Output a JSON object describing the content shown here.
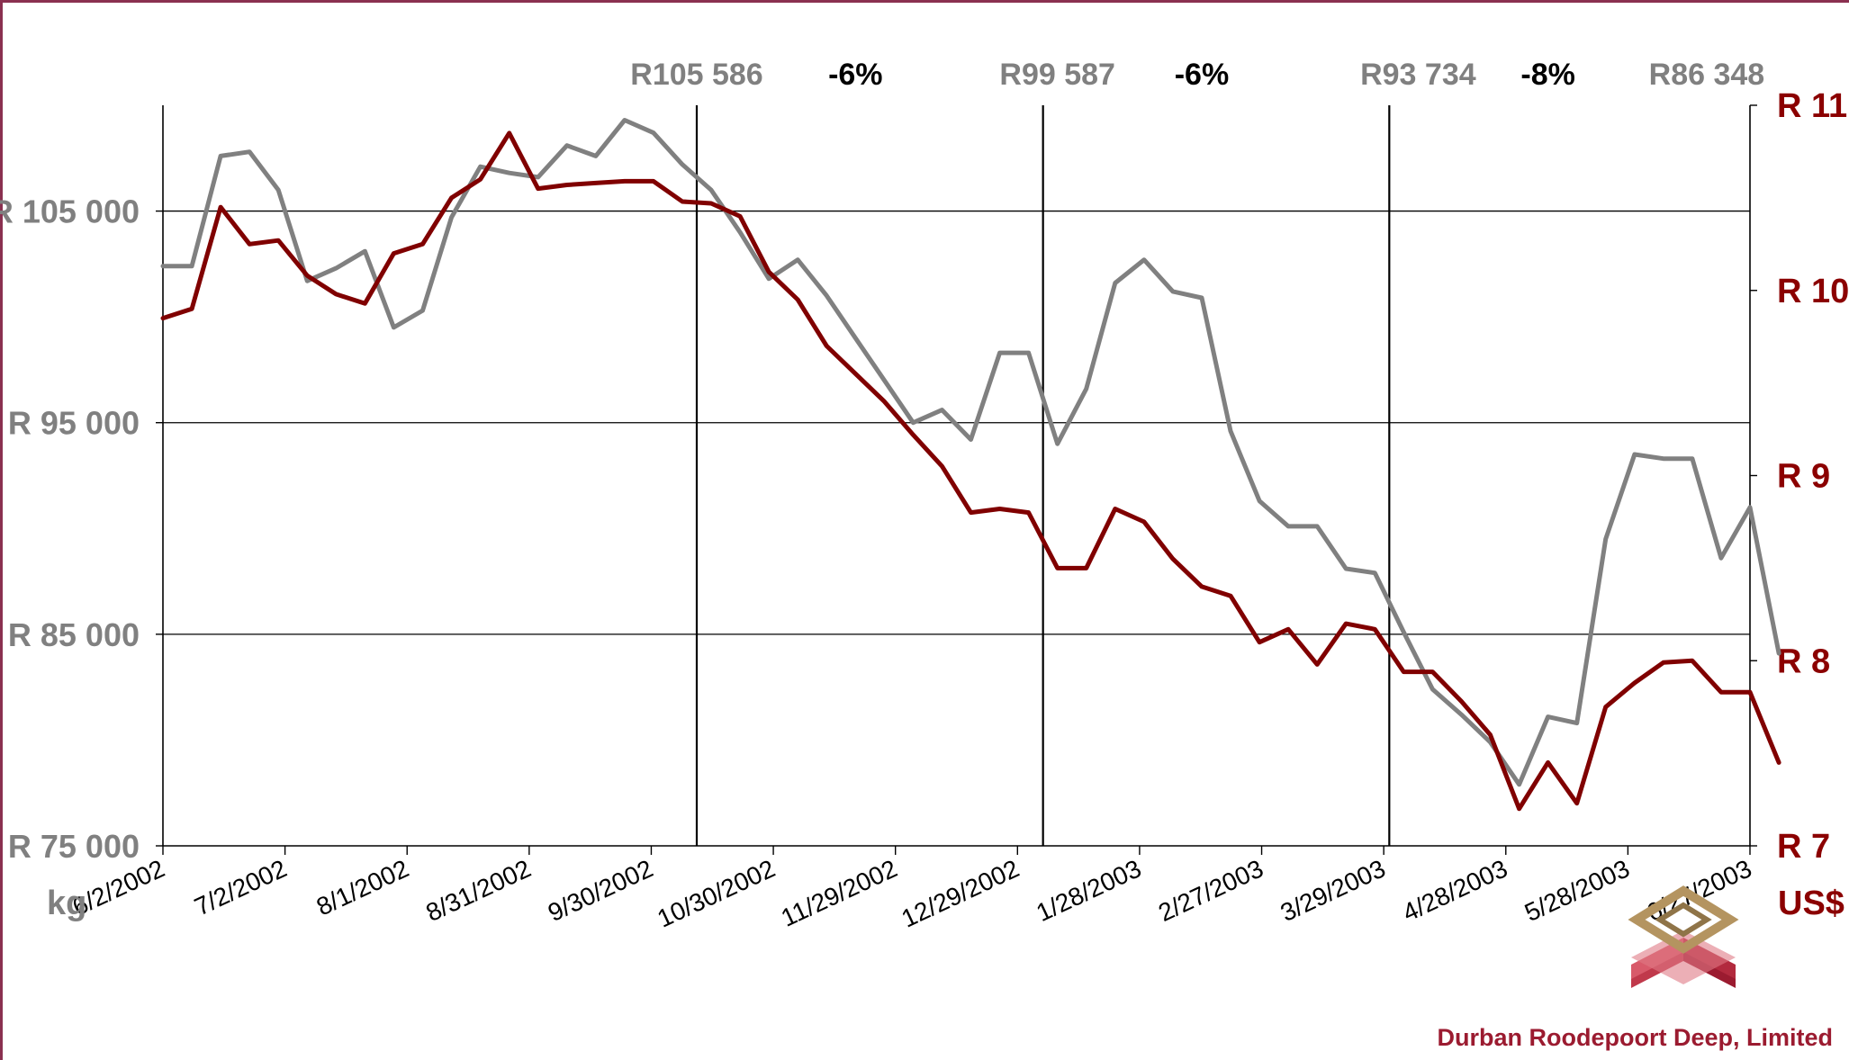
{
  "chart_data": {
    "type": "line",
    "left_axis": {
      "unit": "kg",
      "ticks": [
        "R 105 000",
        "R 95 000",
        "R 85 000",
        "R 75 000"
      ],
      "tick_values": [
        105000,
        95000,
        85000,
        75000
      ],
      "range": [
        75000,
        110000
      ]
    },
    "right_axis": {
      "unit": "US$",
      "ticks": [
        "R 11",
        "R 10",
        "R 9",
        "R 8",
        "R 7"
      ],
      "tick_values": [
        11,
        10,
        9,
        8,
        7
      ],
      "range": [
        7,
        11
      ]
    },
    "x_tick_labels": [
      "6/2/2002",
      "7/2/2002",
      "8/1/2002",
      "8/31/2002",
      "9/30/2002",
      "10/30/2002",
      "11/29/2002",
      "12/29/2002",
      "1/28/2003",
      "2/27/2003",
      "3/29/2003",
      "4/28/2003",
      "5/28/2003",
      "6/27/2003"
    ],
    "x_range_index": [
      0,
      55
    ],
    "annotations": [
      {
        "text": "R105 586",
        "style": "gray",
        "x_index": 18.5
      },
      {
        "text": "-6%",
        "style": "black",
        "x_index": 24
      },
      {
        "text": "R99 587",
        "style": "gray",
        "x_index": 31
      },
      {
        "text": "-6%",
        "style": "black",
        "x_index": 36
      },
      {
        "text": "R93 734",
        "style": "gray",
        "x_index": 43.5
      },
      {
        "text": "-8%",
        "style": "black",
        "x_index": 48
      },
      {
        "text": "R86 348",
        "style": "gray",
        "x_index": 53.5
      }
    ],
    "period_dividers_index": [
      18.5,
      30.5,
      42.5
    ],
    "grid": true,
    "series": [
      {
        "color": "#808080",
        "axis": "left",
        "values": [
          102400,
          102400,
          107600,
          107800,
          106000,
          101700,
          102300,
          103100,
          99500,
          100300,
          104700,
          107100,
          106800,
          106600,
          108100,
          107600,
          109300,
          108700,
          107200,
          106000,
          104000,
          101800,
          102700,
          101000,
          99000,
          97000,
          95000,
          95600,
          94200,
          98300,
          98300,
          94000,
          96600,
          101600,
          102700,
          101200,
          100900,
          94600,
          91300,
          90100,
          90100,
          88100,
          87900,
          85100,
          82400,
          81200,
          79900,
          77900,
          81100,
          80800,
          89500,
          93500,
          93300,
          93300,
          88600,
          91000,
          84100
        ]
      },
      {
        "color": "#800000",
        "axis": "right",
        "values": [
          9.85,
          9.9,
          10.45,
          10.25,
          10.27,
          10.08,
          9.98,
          9.93,
          10.2,
          10.25,
          10.5,
          10.6,
          10.85,
          10.55,
          10.57,
          10.58,
          10.59,
          10.59,
          10.48,
          10.47,
          10.4,
          10.1,
          9.95,
          9.7,
          9.55,
          9.4,
          9.22,
          9.05,
          8.8,
          8.82,
          8.8,
          8.5,
          8.5,
          8.82,
          8.75,
          8.55,
          8.4,
          8.35,
          8.1,
          8.17,
          7.98,
          8.2,
          8.17,
          7.94,
          7.94,
          7.78,
          7.6,
          7.2,
          7.45,
          7.23,
          7.75,
          7.88,
          7.99,
          8.0,
          7.83,
          7.83,
          7.45
        ]
      }
    ]
  },
  "logo": {
    "company": "Durban Roodepoort Deep, Limited"
  },
  "colors": {
    "gray_series": "#808080",
    "red_series": "#800000",
    "frame": "#8a3050"
  }
}
